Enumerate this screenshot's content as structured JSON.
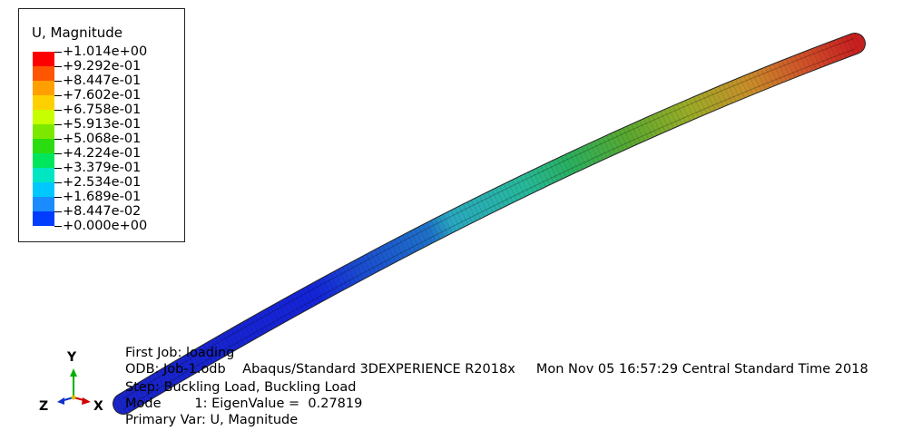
{
  "legend": {
    "title": "U, Magnitude",
    "labels": [
      "+1.014e+00",
      "+9.292e-01",
      "+8.447e-01",
      "+7.602e-01",
      "+6.758e-01",
      "+5.913e-01",
      "+5.068e-01",
      "+4.224e-01",
      "+3.379e-01",
      "+2.534e-01",
      "+1.689e-01",
      "+8.447e-02",
      "+0.000e+00"
    ],
    "colors": [
      "#ff0000",
      "#ff5500",
      "#ffa000",
      "#ffd000",
      "#c8ff00",
      "#7ce800",
      "#2bdc11",
      "#00e65c",
      "#00e6c3",
      "#00c8ff",
      "#1a8cff",
      "#003dff"
    ]
  },
  "info": {
    "job_label": "First Job: loading",
    "odb_line": "ODB: Job-1.odb    Abaqus/Standard 3DEXPERIENCE R2018x     Mon Nov 05 16:57:29 Central Standard Time 2018",
    "step_line": "Step: Buckling Load, Buckling Load",
    "mode_line": "Mode        1: EigenValue =  0.27819",
    "primary_var": "Primary Var: U, Magnitude"
  },
  "triad": {
    "y": "Y",
    "z": "Z",
    "x": "X"
  }
}
